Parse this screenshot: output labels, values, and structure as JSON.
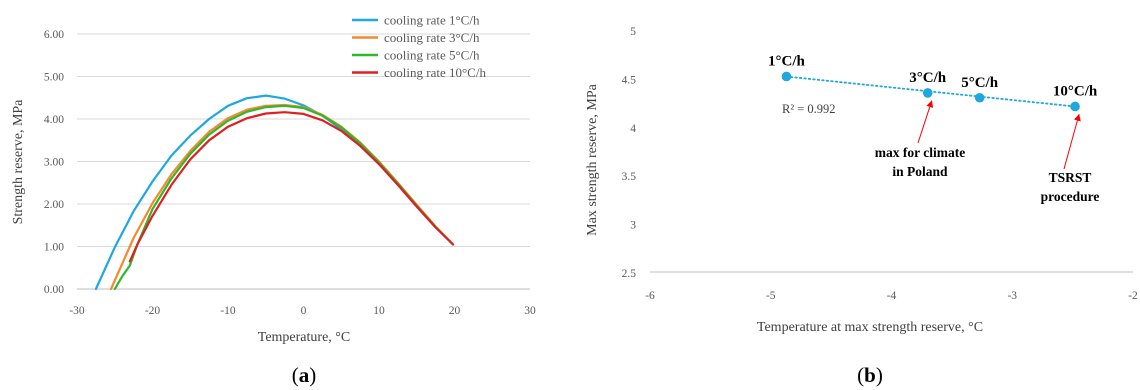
{
  "panel_labels": {
    "a_open": "(",
    "a_letter": "a",
    "a_close": ")",
    "b_open": "(",
    "b_letter": "b",
    "b_close": ")"
  },
  "colors": {
    "blue": "#1fa7e0",
    "orange": "#f28a2e",
    "green": "#2eb82e",
    "red": "#e02020",
    "grid": "#d9d9d9",
    "arrow": "#ff0000"
  },
  "chart_data": [
    {
      "type": "line",
      "xlabel": "Temperature, °C",
      "ylabel": "Strength reserve, MPa",
      "xlim": [
        -30,
        30
      ],
      "ylim": [
        0,
        6
      ],
      "x_ticks": [
        "-30",
        "-20",
        "-10",
        "0",
        "10",
        "20",
        "30"
      ],
      "y_ticks": [
        "0.00",
        "1.00",
        "2.00",
        "3.00",
        "4.00",
        "5.00",
        "6.00"
      ],
      "grid": "horizontal",
      "legend_position": "top-right",
      "series": [
        {
          "name": "cooling rate 1°C/h",
          "color": "#1fa7e0",
          "x": [
            -27.5,
            -25,
            -22.5,
            -20,
            -17.5,
            -15,
            -12.5,
            -10,
            -7.5,
            -5,
            -2.5,
            0,
            2.5,
            5,
            7.5,
            10,
            12.5,
            15,
            17.5,
            19.8
          ],
          "y": [
            0.0,
            0.98,
            1.83,
            2.53,
            3.14,
            3.61,
            4.0,
            4.31,
            4.49,
            4.55,
            4.48,
            4.32,
            4.08,
            3.76,
            3.38,
            2.94,
            2.45,
            1.94,
            1.45,
            1.05
          ]
        },
        {
          "name": "cooling rate 3°C/h",
          "color": "#f28a2e",
          "x": [
            -25.5,
            -22.5,
            -20,
            -17.5,
            -15,
            -12.5,
            -10,
            -7.5,
            -5,
            -2.5,
            0,
            2.5,
            5,
            7.5,
            10,
            12.5,
            15,
            17.5,
            19.8
          ],
          "y": [
            0.0,
            1.2,
            2.02,
            2.7,
            3.25,
            3.7,
            4.02,
            4.22,
            4.31,
            4.33,
            4.28,
            4.1,
            3.82,
            3.45,
            3.0,
            2.5,
            1.98,
            1.47,
            1.05
          ]
        },
        {
          "name": "cooling rate 5°C/h",
          "color": "#2eb82e",
          "x": [
            -25,
            -24,
            -23,
            -22,
            -20,
            -17.5,
            -15,
            -12.5,
            -10,
            -7.5,
            -5,
            -2.5,
            0,
            2.5,
            5,
            7.5,
            10,
            12.5,
            15,
            17.5,
            19.8
          ],
          "y": [
            0.0,
            0.3,
            0.55,
            1.05,
            1.88,
            2.6,
            3.18,
            3.63,
            3.96,
            4.17,
            4.28,
            4.31,
            4.26,
            4.08,
            3.8,
            3.43,
            2.98,
            2.48,
            1.96,
            1.46,
            1.05
          ]
        },
        {
          "name": "cooling rate 10°C/h",
          "color": "#e02020",
          "x": [
            -23,
            -22,
            -20,
            -17.5,
            -15,
            -12.5,
            -10,
            -7.5,
            -5,
            -2.5,
            0,
            2.5,
            5,
            7.5,
            10,
            12.5,
            15,
            17.5,
            19.8
          ],
          "y": [
            0.65,
            1.05,
            1.72,
            2.45,
            3.05,
            3.5,
            3.82,
            4.02,
            4.13,
            4.16,
            4.12,
            3.97,
            3.72,
            3.37,
            2.94,
            2.45,
            1.94,
            1.45,
            1.05
          ]
        }
      ]
    },
    {
      "type": "scatter",
      "xlabel": "Temperature at max strength reserve, °C",
      "ylabel": "Max strength reserve, MPa",
      "xlim": [
        -6,
        -2
      ],
      "ylim": [
        2.5,
        5
      ],
      "x_ticks": [
        "-6",
        "-5",
        "-4",
        "-3",
        "-2"
      ],
      "y_ticks": [
        "2.5",
        "3",
        "3.5",
        "4",
        "4.5",
        "5"
      ],
      "grid": "none",
      "points": [
        {
          "label": "1°C/h",
          "x": -4.87,
          "y": 4.52
        },
        {
          "label": "3°C/h",
          "x": -3.7,
          "y": 4.35
        },
        {
          "label": "5°C/h",
          "x": -3.27,
          "y": 4.3
        },
        {
          "label": "10°C/h",
          "x": -2.48,
          "y": 4.21
        }
      ],
      "trendline": {
        "style": "dotted",
        "r_squared_text": "R² = 0.992"
      },
      "annotations": [
        {
          "lines": [
            "max for climate",
            "in Poland"
          ],
          "target_point": 1
        },
        {
          "lines": [
            "TSRST",
            "procedure"
          ],
          "target_point": 3
        }
      ]
    }
  ]
}
